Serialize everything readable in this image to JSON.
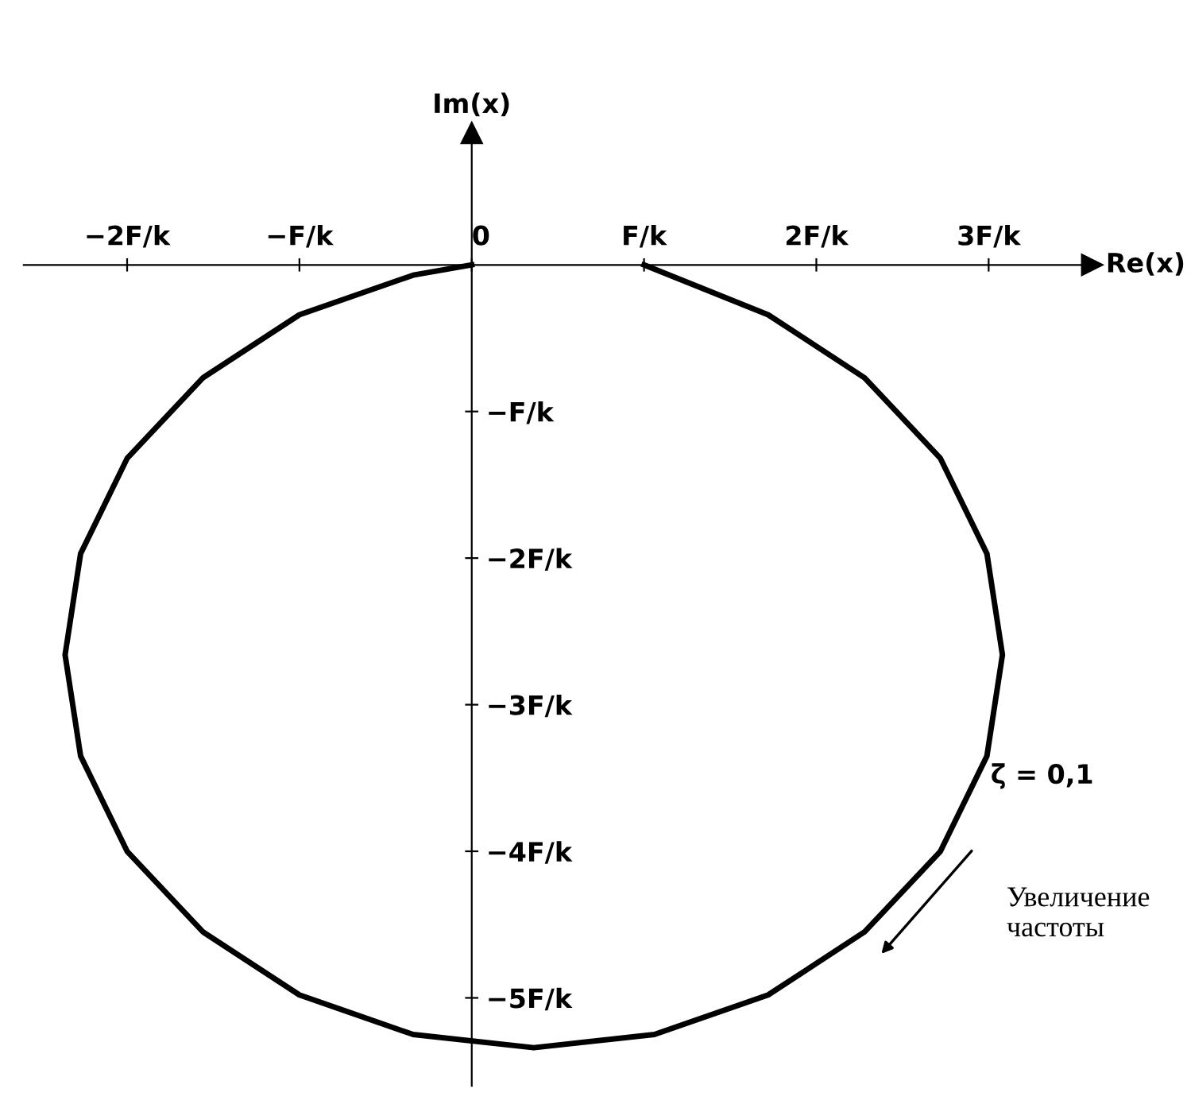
{
  "chart_data": {
    "type": "line",
    "xlabel": "Re(x)",
    "ylabel": "Im(x)",
    "x": [
      1.0,
      1.72,
      2.28,
      2.72,
      2.99,
      3.08,
      2.99,
      2.72,
      2.28,
      1.72,
      1.06,
      0.36,
      -0.34,
      -1.0,
      -1.56,
      -2.0,
      -2.27,
      -2.36,
      -2.27,
      -2.0,
      -1.56,
      -1.0,
      -0.34,
      0.0
    ],
    "series": [
      {
        "color": "#000000",
        "values": [
          0.0,
          -0.34,
          -0.77,
          -1.32,
          -1.97,
          -2.66,
          -3.35,
          -4.0,
          -4.55,
          -4.98,
          -5.25,
          -5.34,
          -5.25,
          -4.98,
          -4.55,
          -4.0,
          -3.35,
          -2.66,
          -1.97,
          -1.32,
          -0.77,
          -0.34,
          -0.07,
          0.0
        ]
      }
    ],
    "xlim": [
      -2.6,
      3.6
    ],
    "ylim": [
      -5.6,
      0.9
    ],
    "xticks": [
      {
        "value": -2,
        "label": "−2F/k"
      },
      {
        "value": -1,
        "label": "−F/k"
      },
      {
        "value": 0,
        "label": "0"
      },
      {
        "value": 1,
        "label": "F/k"
      },
      {
        "value": 2,
        "label": "2F/k"
      },
      {
        "value": 3,
        "label": "3F/k"
      }
    ],
    "yticks": [
      {
        "value": -1,
        "label": "−F/k"
      },
      {
        "value": -2,
        "label": "−2F/k"
      },
      {
        "value": -3,
        "label": "−3F/k"
      },
      {
        "value": -4,
        "label": "−4F/k"
      },
      {
        "value": -5,
        "label": "−5F/k"
      }
    ],
    "annotations": [
      "ζ = 0,1",
      "Увеличение\nчастоты"
    ],
    "grid": false,
    "legend": false,
    "marker": "none",
    "line_style": "solid"
  }
}
